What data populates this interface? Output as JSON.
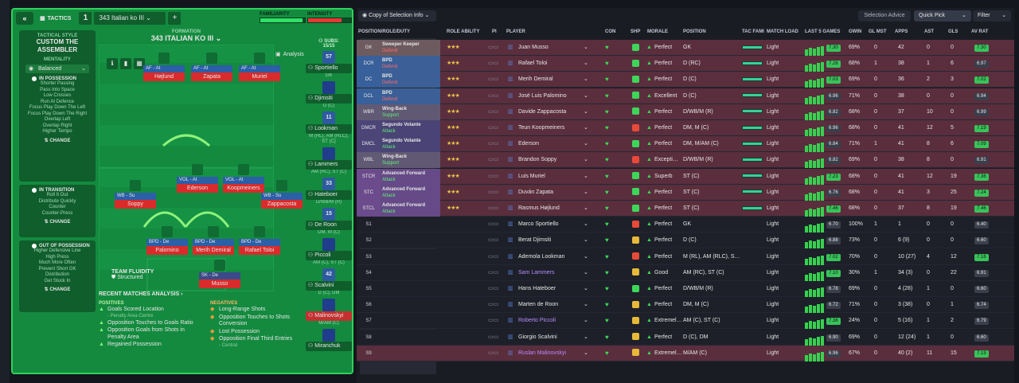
{
  "left": {
    "title": "TACTICS",
    "slot": "1",
    "tactic_name": "343 Italian ko III",
    "familiarity_label": "FAMILIARITY",
    "familiarity_level": 0.95,
    "intensity_label": "INTENSITY",
    "intensity_level": 0.78,
    "style_caption": "TACTICAL STYLE",
    "style_name": "CUSTOM THE ASSEMBLER",
    "mentality_caption": "MENTALITY",
    "mentality_value": "Balanced",
    "in_possession": "IN POSSESSION",
    "possession_items": [
      "Shorter Passing",
      "Pass Into Space",
      "Low Crosses",
      "Run At Defence",
      "Focus Play Down The Left",
      "Focus Play Down The Right",
      "Overlap Left",
      "Overlap Right",
      "Higher Tempo"
    ],
    "change": "CHANGE",
    "in_transition": "IN TRANSITION",
    "transition_items": [
      "Roll It Out",
      "Distribute Quickly",
      "Counter",
      "Counter-Press"
    ],
    "out_of_possession": "OUT OF POSSESSION",
    "oop_items": [
      "Higher Defensive Line",
      "High Press",
      "Much More Often",
      "Prevent Short GK",
      "Distribution",
      "Get Stuck In"
    ],
    "formation_caption": "FORMATION",
    "formation_name": "343 ITALIAN KO III",
    "analysis": "Analysis",
    "fluidity_caption": "TEAM FLUIDITY",
    "fluidity_value": "Structured",
    "pitch": [
      {
        "role": "AF - At",
        "name": "Højlund"
      },
      {
        "role": "AF - At",
        "name": "Zapata"
      },
      {
        "role": "AF - At",
        "name": "Muriel"
      },
      {
        "role": "VOL - At",
        "name": "Ederson"
      },
      {
        "role": "VOL - At",
        "name": "Koopmeiners"
      },
      {
        "role": "WB - Su",
        "name": "Soppy"
      },
      {
        "role": "WB - Su",
        "name": "Zappacosta"
      },
      {
        "role": "BPD - De",
        "name": "Palomino"
      },
      {
        "role": "BPD - De",
        "name": "Merih Demiral"
      },
      {
        "role": "BPD - De",
        "name": "Rafael Toloi"
      },
      {
        "role": "SK - De",
        "name": "Musso"
      }
    ],
    "subs_caption": "SUBS:",
    "subs_count": "15/15",
    "subs": [
      {
        "num": "57",
        "name": "Sportiello",
        "pos": "GK"
      },
      {
        "num": "",
        "name": "Djimsiti",
        "pos": "D (C)"
      },
      {
        "num": "11",
        "name": "Lookman",
        "pos": "M (RL), AM (RLC), ST (C)"
      },
      {
        "num": "",
        "name": "Lammers",
        "pos": "AM (RC), ST (C)"
      },
      {
        "num": "33",
        "name": "Hateboer",
        "pos": "D/WB/M (R)"
      },
      {
        "num": "15",
        "name": "De Roon",
        "pos": "DM, M (C)"
      },
      {
        "num": "",
        "name": "Piccoli",
        "pos": "AM (C), ST (C)"
      },
      {
        "num": "42",
        "name": "Scalvini",
        "pos": "D (C), DM"
      },
      {
        "num": "",
        "name": "Malinovskyi",
        "pos": "M/AM (C)"
      },
      {
        "num": "",
        "name": "Miranchuk",
        "pos": ""
      }
    ],
    "recent_caption": "RECENT MATCHES ANALYSIS",
    "positives_caption": "POSITIVES",
    "positives": [
      {
        "text": "Goals Scored Location",
        "sub": "- Penalty Area Centre"
      },
      {
        "text": "Opposition Touches to Goals Ratio",
        "sub": ""
      },
      {
        "text": "Opposition Goals from Shots in Penalty Area",
        "sub": ""
      },
      {
        "text": "Regained Possession",
        "sub": ""
      }
    ],
    "negatives_caption": "NEGATIVES",
    "negatives": [
      {
        "text": "Long-Range Shots",
        "sub": ""
      },
      {
        "text": "Opposition Touches to Shots Conversion",
        "sub": ""
      },
      {
        "text": "Lost Possession",
        "sub": ""
      },
      {
        "text": "Opposition Final Third Entries",
        "sub": "- Central"
      }
    ]
  },
  "right": {
    "view_button": "Copy of Selection Info",
    "advice_button": "Selection Advice",
    "quick_pick": "Quick Pick",
    "filter": "Filter",
    "headers": {
      "position": "POSITION/ROLE/DUTY",
      "ability": "ROLE ABILITY",
      "pi": "PI",
      "player": "PLAYER",
      "con": "CON",
      "shp": "SHP",
      "morale": "MORALE",
      "pos": "POSITION",
      "tac": "TAC FAMI",
      "load": "MATCH LOAD",
      "games": "LAST 5 GAMES",
      "gwin": "GWIN",
      "glmst": "GL MST",
      "apps": "APPS",
      "ast": "AST",
      "gls": "GLS",
      "avrat": "AV RAT"
    },
    "rows": [
      {
        "slot": "GK",
        "role": "Sweeper Keeper",
        "duty": "Defend",
        "stars": "★★★",
        "name": "Juan Musso",
        "morale": "Perfect",
        "pos": "GK",
        "load": "Light",
        "form": "7.30",
        "gwin": "69%",
        "glmst": "0",
        "apps": "42",
        "ast": "0",
        "gls": "0",
        "avrat": "7.30"
      },
      {
        "slot": "DCR",
        "role": "BPD",
        "duty": "Defend",
        "stars": "★★★",
        "name": "Rafael Toloi",
        "morale": "Perfect",
        "pos": "D (RC)",
        "load": "Light",
        "form": "7.26",
        "gwin": "68%",
        "glmst": "1",
        "apps": "38",
        "ast": "1",
        "gls": "6",
        "avrat": "6.97"
      },
      {
        "slot": "DC",
        "role": "BPD",
        "duty": "Defend",
        "stars": "★★★",
        "name": "Merih Demiral",
        "morale": "Perfect",
        "pos": "D (C)",
        "load": "Light",
        "form": "7.03",
        "gwin": "69%",
        "glmst": "0",
        "apps": "36",
        "ast": "2",
        "gls": "3",
        "avrat": "7.02"
      },
      {
        "slot": "DCL",
        "role": "BPD",
        "duty": "Defend",
        "stars": "★★★",
        "name": "José Luis Palomino",
        "morale": "Excellent",
        "pos": "D (C)",
        "load": "Light",
        "form": "6.96",
        "gwin": "71%",
        "glmst": "0",
        "apps": "38",
        "ast": "0",
        "gls": "0",
        "avrat": "6.94"
      },
      {
        "slot": "WBR",
        "role": "Wing-Back",
        "duty": "Support",
        "stars": "★★★",
        "name": "Davide Zappacosta",
        "morale": "Perfect",
        "pos": "D/WB/M (R)",
        "load": "Light",
        "form": "6.82",
        "gwin": "68%",
        "glmst": "0",
        "apps": "37",
        "ast": "10",
        "gls": "0",
        "avrat": "6.99"
      },
      {
        "slot": "DMCR",
        "role": "Segundo Volante",
        "duty": "Attack",
        "stars": "★★★",
        "name": "Teun Koopmeiners",
        "morale": "Perfect",
        "pos": "DM, M (C)",
        "load": "Light",
        "form": "6.96",
        "gwin": "68%",
        "glmst": "0",
        "apps": "41",
        "ast": "12",
        "gls": "5",
        "avrat": "7.19"
      },
      {
        "slot": "DMCL",
        "role": "Segundo Volante",
        "duty": "Attack",
        "stars": "★★★",
        "name": "Ederson",
        "morale": "Perfect",
        "pos": "DM, M/AM (C)",
        "load": "Light",
        "form": "6.84",
        "gwin": "71%",
        "glmst": "1",
        "apps": "41",
        "ast": "8",
        "gls": "6",
        "avrat": "7.09"
      },
      {
        "slot": "WBL",
        "role": "Wing-Back",
        "duty": "Support",
        "stars": "★★★",
        "name": "Brandon Soppy",
        "morale": "Excepti…",
        "pos": "D/WB/M (R)",
        "load": "Light",
        "form": "6.82",
        "gwin": "69%",
        "glmst": "0",
        "apps": "38",
        "ast": "8",
        "gls": "0",
        "avrat": "6.91"
      },
      {
        "slot": "STCR",
        "role": "Advanced Forward",
        "duty": "Attack",
        "stars": "★★★",
        "name": "Luis Muriel",
        "morale": "Superb",
        "pos": "ST (C)",
        "load": "Light",
        "form": "7.23",
        "gwin": "68%",
        "glmst": "0",
        "apps": "41",
        "ast": "12",
        "gls": "19",
        "avrat": "7.36"
      },
      {
        "slot": "STC",
        "role": "Advanced Forward",
        "duty": "Attack",
        "stars": "★★★",
        "name": "Duván Zapata",
        "morale": "Perfect",
        "pos": "ST (C)",
        "load": "Light",
        "form": "6.76",
        "gwin": "68%",
        "glmst": "0",
        "apps": "41",
        "ast": "3",
        "gls": "25",
        "avrat": "7.24"
      },
      {
        "slot": "STCL",
        "role": "Advanced Forward",
        "duty": "Attack",
        "stars": "★★★",
        "name": "Rasmus Højlund",
        "morale": "Perfect",
        "pos": "ST (C)",
        "load": "Light",
        "form": "7.46",
        "gwin": "68%",
        "glmst": "0",
        "apps": "37",
        "ast": "8",
        "gls": "19",
        "avrat": "7.46"
      },
      {
        "slot": "S1",
        "role": "",
        "duty": "",
        "stars": "",
        "name": "Marco Sportiello",
        "morale": "Perfect",
        "pos": "GK",
        "load": "Light",
        "form": "6.70",
        "gwin": "100%",
        "glmst": "1",
        "apps": "1",
        "ast": "0",
        "gls": "0",
        "avrat": "6.40"
      },
      {
        "slot": "S2",
        "role": "",
        "duty": "",
        "stars": "",
        "name": "Berat Djimsiti",
        "morale": "Perfect",
        "pos": "D (C)",
        "load": "Light",
        "form": "6.88",
        "gwin": "73%",
        "glmst": "0",
        "apps": "6 (9)",
        "ast": "0",
        "gls": "0",
        "avrat": "6.60"
      },
      {
        "slot": "S3",
        "role": "",
        "duty": "",
        "stars": "",
        "name": "Ademola Lookman",
        "morale": "Perfect",
        "pos": "M (RL), AM (RLC), S…",
        "load": "Light",
        "form": "7.02",
        "gwin": "70%",
        "glmst": "0",
        "apps": "10 (27)",
        "ast": "4",
        "gls": "12",
        "avrat": "7.16"
      },
      {
        "slot": "S4",
        "role": "",
        "duty": "",
        "stars": "",
        "name": "Sam Lammers",
        "morale": "Good",
        "pos": "AM (RC), ST (C)",
        "load": "Light",
        "form": "7.10",
        "gwin": "30%",
        "glmst": "1",
        "apps": "34 (3)",
        "ast": "0",
        "gls": "22",
        "avrat": "6.91"
      },
      {
        "slot": "S5",
        "role": "",
        "duty": "",
        "stars": "",
        "name": "Hans Hateboer",
        "morale": "Perfect",
        "pos": "D/WB/M (R)",
        "load": "Light",
        "form": "6.78",
        "gwin": "69%",
        "glmst": "0",
        "apps": "4 (28)",
        "ast": "1",
        "gls": "0",
        "avrat": "6.60"
      },
      {
        "slot": "S6",
        "role": "",
        "duty": "",
        "stars": "",
        "name": "Marten de Roon",
        "morale": "Perfect",
        "pos": "DM, M (C)",
        "load": "Light",
        "form": "6.72",
        "gwin": "71%",
        "glmst": "0",
        "apps": "3 (38)",
        "ast": "0",
        "gls": "1",
        "avrat": "6.74"
      },
      {
        "slot": "S7",
        "role": "",
        "duty": "",
        "stars": "",
        "name": "Roberto Piccoli",
        "morale": "Extremel…",
        "pos": "AM (C), ST (C)",
        "load": "Light",
        "form": "7.38",
        "gwin": "24%",
        "glmst": "0",
        "apps": "5 (16)",
        "ast": "1",
        "gls": "2",
        "avrat": "6.79"
      },
      {
        "slot": "S8",
        "role": "",
        "duty": "",
        "stars": "",
        "name": "Giorgio Scalvini",
        "morale": "Perfect",
        "pos": "D (C), DM",
        "load": "Light",
        "form": "6.90",
        "gwin": "69%",
        "glmst": "0",
        "apps": "12 (24)",
        "ast": "1",
        "gls": "0",
        "avrat": "6.60"
      },
      {
        "slot": "S9",
        "role": "",
        "duty": "",
        "stars": "",
        "name": "Ruslan Malinovskyi",
        "morale": "Extremel…",
        "pos": "M/AM (C)",
        "load": "Light",
        "form": "6.96",
        "gwin": "67%",
        "glmst": "0",
        "apps": "40 (2)",
        "ast": "11",
        "gls": "15",
        "avrat": "7.19"
      }
    ]
  },
  "colors": {
    "accent": "#2fd15c",
    "selected_row": "#5a2e3c",
    "rating_green": "#39c25a"
  }
}
